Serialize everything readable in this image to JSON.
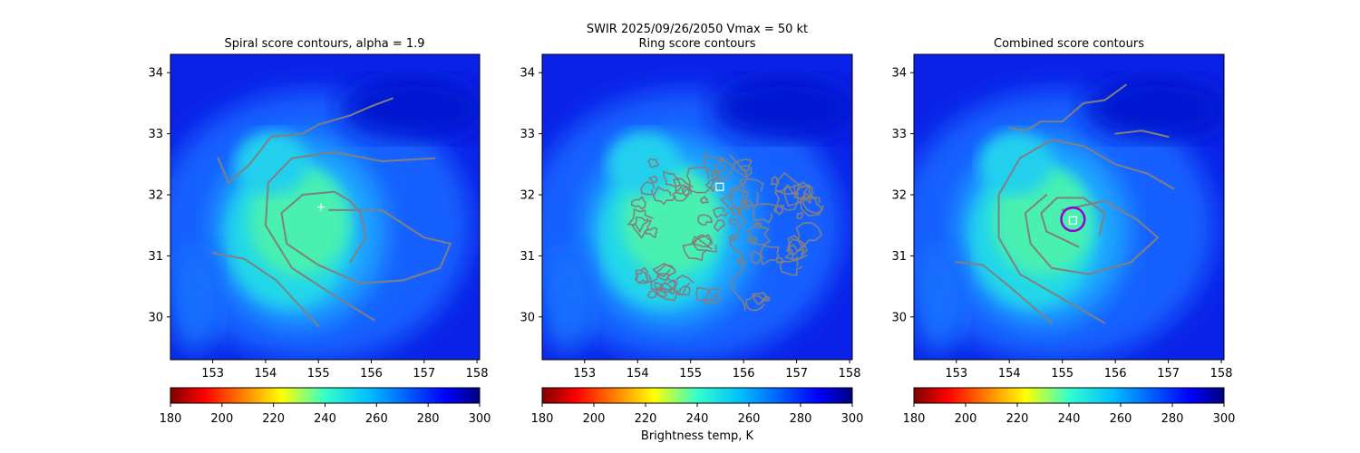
{
  "figure": {
    "suptitle_line1": "SWIR  2025/09/26/2050    Vmax = 50 kt",
    "colorbar_label": "Brightness temp, K"
  },
  "chart_data": [
    {
      "type": "heatmap",
      "title": "Spiral score contours, alpha =  1.9",
      "xlim": [
        152.2,
        158.05
      ],
      "ylim": [
        29.3,
        34.3
      ],
      "xticks": [
        153,
        154,
        155,
        156,
        157,
        158
      ],
      "yticks": [
        30,
        31,
        32,
        33,
        34
      ],
      "center": [
        155.3,
        31.5
      ],
      "marker": {
        "type": "plus",
        "x": 155.05,
        "y": 31.8,
        "color": "#ffffff"
      },
      "contours": [
        [
          [
            155.0,
            29.85
          ],
          [
            154.2,
            30.6
          ],
          [
            153.6,
            30.95
          ],
          [
            153.0,
            31.05
          ]
        ],
        [
          [
            156.05,
            29.95
          ],
          [
            155.3,
            30.35
          ],
          [
            154.5,
            30.8
          ],
          [
            154.0,
            31.5
          ],
          [
            154.05,
            32.2
          ],
          [
            154.5,
            32.6
          ],
          [
            155.3,
            32.7
          ],
          [
            156.2,
            32.55
          ],
          [
            157.2,
            32.6
          ]
        ],
        [
          [
            155.2,
            31.75
          ],
          [
            156.2,
            31.75
          ],
          [
            157.0,
            31.3
          ],
          [
            157.5,
            31.2
          ],
          [
            157.3,
            30.8
          ],
          [
            156.6,
            30.6
          ],
          [
            155.8,
            30.55
          ],
          [
            155.0,
            30.85
          ],
          [
            154.4,
            31.2
          ],
          [
            154.3,
            31.7
          ],
          [
            154.7,
            32.0
          ],
          [
            155.3,
            32.05
          ],
          [
            155.6,
            31.9
          ],
          [
            155.8,
            31.7
          ],
          [
            155.9,
            31.3
          ],
          [
            155.6,
            30.9
          ]
        ],
        [
          [
            153.1,
            32.6
          ],
          [
            153.3,
            32.2
          ],
          [
            153.7,
            32.5
          ],
          [
            154.1,
            32.95
          ],
          [
            154.7,
            33.0
          ],
          [
            155.0,
            33.15
          ],
          [
            155.6,
            33.3
          ],
          [
            156.0,
            33.45
          ],
          [
            156.4,
            33.58
          ]
        ]
      ]
    },
    {
      "type": "heatmap",
      "title": "Ring score contours",
      "xlim": [
        152.2,
        158.05
      ],
      "ylim": [
        29.3,
        34.3
      ],
      "xticks": [
        153,
        154,
        155,
        156,
        157,
        158
      ],
      "yticks": [
        30,
        31,
        32,
        33,
        34
      ],
      "center": [
        155.2,
        31.6
      ],
      "marker": {
        "type": "square",
        "x": 155.55,
        "y": 32.13,
        "color": "#ffffff"
      },
      "noisy_region": {
        "x": [
          154.0,
          157.7
        ],
        "y": [
          30.1,
          32.7
        ],
        "split_x": 155.9
      }
    },
    {
      "type": "heatmap",
      "title": "Combined score contours",
      "xlim": [
        152.2,
        158.05
      ],
      "ylim": [
        29.3,
        34.3
      ],
      "xticks": [
        153,
        154,
        155,
        156,
        157,
        158
      ],
      "yticks": [
        30,
        31,
        32,
        33,
        34
      ],
      "center": [
        155.2,
        31.5
      ],
      "marker": {
        "type": "square",
        "x": 155.2,
        "y": 31.58,
        "color": "#ffffff"
      },
      "circle": {
        "x": 155.2,
        "y": 31.6,
        "r": 0.22,
        "color": "#9900cc"
      },
      "contours": [
        [
          [
            154.8,
            29.9
          ],
          [
            154.0,
            30.5
          ],
          [
            153.5,
            30.85
          ],
          [
            153.0,
            30.9
          ]
        ],
        [
          [
            155.8,
            29.9
          ],
          [
            155.0,
            30.3
          ],
          [
            154.2,
            30.7
          ],
          [
            153.8,
            31.3
          ],
          [
            153.8,
            32.0
          ],
          [
            154.2,
            32.6
          ],
          [
            154.8,
            32.9
          ],
          [
            155.4,
            32.8
          ],
          [
            156.0,
            32.5
          ],
          [
            156.6,
            32.35
          ],
          [
            157.1,
            32.1
          ]
        ],
        [
          [
            155.0,
            31.75
          ],
          [
            155.8,
            31.9
          ],
          [
            156.4,
            31.6
          ],
          [
            156.8,
            31.3
          ],
          [
            156.3,
            30.9
          ],
          [
            155.5,
            30.7
          ],
          [
            154.8,
            30.8
          ],
          [
            154.4,
            31.2
          ],
          [
            154.3,
            31.7
          ],
          [
            154.7,
            32.0
          ]
        ],
        [
          [
            155.3,
            31.15
          ],
          [
            154.7,
            31.4
          ],
          [
            154.6,
            31.7
          ],
          [
            154.9,
            31.95
          ],
          [
            155.4,
            31.95
          ],
          [
            155.8,
            31.7
          ],
          [
            155.7,
            31.35
          ]
        ],
        [
          [
            154.0,
            33.1
          ],
          [
            154.3,
            33.05
          ],
          [
            154.6,
            33.2
          ],
          [
            155.0,
            33.2
          ],
          [
            155.4,
            33.5
          ],
          [
            155.8,
            33.55
          ],
          [
            156.2,
            33.8
          ]
        ],
        [
          [
            156.0,
            33.0
          ],
          [
            156.5,
            33.05
          ],
          [
            157.0,
            32.95
          ]
        ]
      ]
    }
  ],
  "colorbar": {
    "vmin": 180,
    "vmax": 300,
    "ticks": [
      180,
      200,
      220,
      240,
      260,
      280,
      300
    ],
    "colormap": "jet_r"
  },
  "colors": {
    "contour": "#808080",
    "frame": "#000000"
  }
}
